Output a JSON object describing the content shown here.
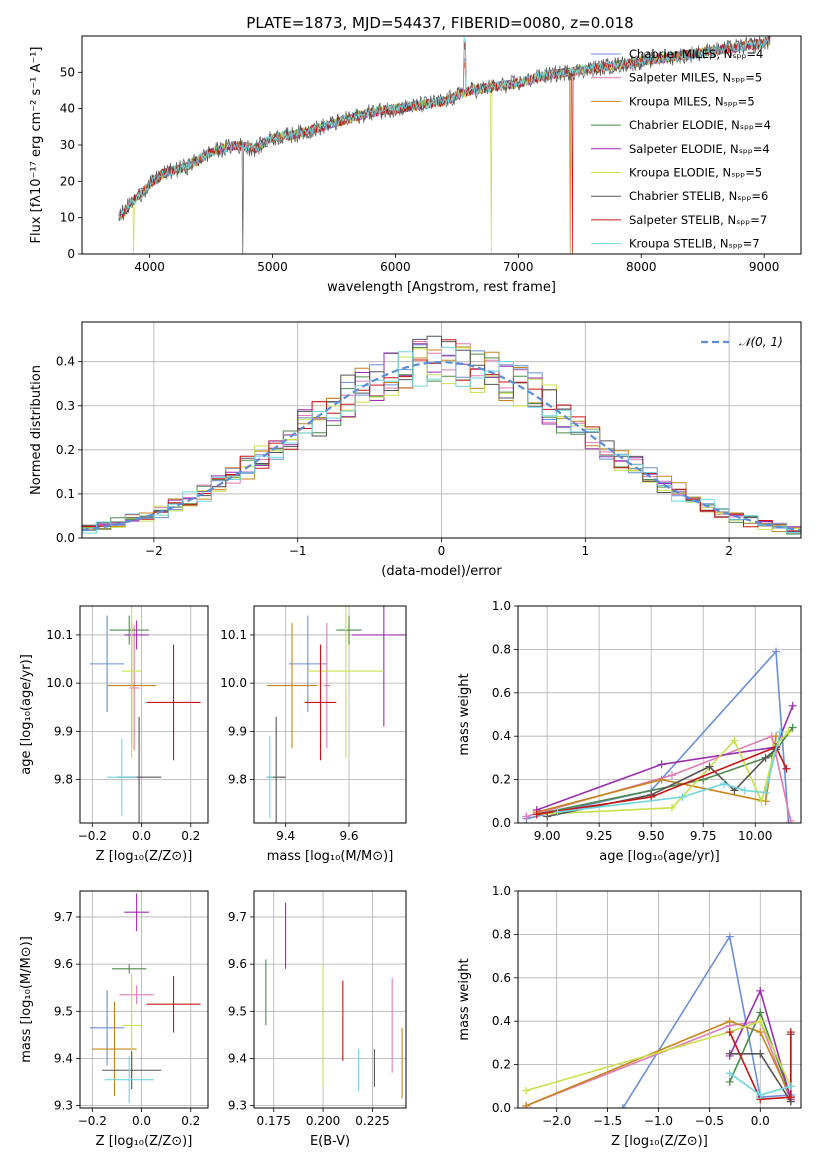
{
  "figure_title": "PLATE=1873, MJD=54437, FIBERID=0080, z=0.018",
  "colors": {
    "Chabrier MILES": "#6a8fd6",
    "Salpeter MILES": "#e07ab8",
    "Kroupa MILES": "#c8841a",
    "Chabrier ELODIE": "#4e8a4e",
    "Salpeter ELODIE": "#9a2fb0",
    "Kroupa ELODIE": "#c8e04a",
    "Chabrier STELIB": "#555555",
    "Salpeter STELIB": "#c81414",
    "Kroupa STELIB": "#6fd6e0"
  },
  "chart_data": [
    {
      "id": "spectrum",
      "type": "line",
      "xlabel": "wavelength [Angstrom, rest frame]",
      "ylabel": "Flux [fλ10⁻¹⁷ erg cm⁻² s⁻¹ A⁻¹]",
      "xlim": [
        3450,
        9300
      ],
      "ylim": [
        0,
        60
      ],
      "xticks": [
        4000,
        5000,
        6000,
        7000,
        8000,
        9000
      ],
      "yticks": [
        0,
        10,
        20,
        30,
        40,
        50
      ],
      "grid": false,
      "legend_position": "top-right",
      "legend": [
        "Chabrier MILES, Nₛₚₚ=4",
        "Salpeter MILES, Nₛₚₚ=5",
        "Kroupa MILES, Nₛₚₚ=5",
        "Chabrier ELODIE, Nₛₚₚ=4",
        "Salpeter ELODIE, Nₛₚₚ=4",
        "Kroupa ELODIE, Nₛₚₚ=5",
        "Chabrier STELIB, Nₛₚₚ=6",
        "Salpeter STELIB, Nₛₚₚ=7",
        "Kroupa STELIB, Nₛₚₚ=7"
      ],
      "continuum": {
        "x": [
          3750,
          3850,
          4000,
          4100,
          4300,
          4500,
          4700,
          4860,
          5000,
          5200,
          5400,
          5600,
          5800,
          6000,
          6200,
          6400,
          6600,
          6800,
          7000,
          7200,
          7400,
          7600,
          7800,
          8000,
          8200,
          8400,
          8600,
          8800,
          9000,
          9050
        ],
        "y": [
          10,
          14,
          19,
          22,
          24,
          28,
          30,
          29,
          32,
          33,
          35,
          37,
          39,
          40,
          41,
          42,
          45,
          46,
          47,
          49,
          50,
          51,
          52,
          53,
          54,
          55,
          56,
          57,
          58,
          59
        ]
      },
      "dropouts": [
        {
          "series": "Kroupa ELODIE",
          "x": 3870
        },
        {
          "series": "Chabrier STELIB",
          "x": 4760
        },
        {
          "series": "Kroupa ELODIE",
          "x": 6780
        },
        {
          "series": "Kroupa MILES",
          "x": 7420
        },
        {
          "series": "Salpeter STELIB",
          "x": 7440
        }
      ]
    },
    {
      "id": "residuals",
      "type": "line",
      "xlabel": "(data-model)/error",
      "ylabel": "Normed distribution",
      "xlim": [
        -2.5,
        2.5
      ],
      "ylim": [
        0,
        0.49
      ],
      "xticks": [
        -2,
        -1,
        0,
        1,
        2
      ],
      "yticks": [
        0.0,
        0.1,
        0.2,
        0.3,
        0.4
      ],
      "grid": true,
      "legend_position": "top-right",
      "legend": [
        "𝒩(0, 1)"
      ],
      "gaussian": {
        "mean": 0,
        "sigma": 1
      }
    },
    {
      "id": "age_vs_Z",
      "type": "scatter",
      "xlabel": "Z [log₁₀(Z/Z⊙)]",
      "ylabel": "age  [log₁₀(age/yr)]",
      "xlim": [
        -0.25,
        0.27
      ],
      "ylim": [
        9.71,
        10.16
      ],
      "xticks": [
        -0.2,
        0.0,
        0.2
      ],
      "yticks": [
        9.8,
        9.9,
        10.0,
        10.1
      ],
      "grid": true,
      "points": [
        {
          "series": "Chabrier MILES",
          "x": -0.14,
          "xerr": 0.07,
          "y": 10.04,
          "yerr": 0.1
        },
        {
          "series": "Salpeter MILES",
          "x": -0.03,
          "xerr": 0.02,
          "y": 9.99,
          "yerr": 0.13
        },
        {
          "series": "Kroupa MILES",
          "x": -0.04,
          "xerr": 0.1,
          "y": 9.995,
          "yerr": 0.13
        },
        {
          "series": "Chabrier ELODIE",
          "x": -0.05,
          "xerr": 0.08,
          "y": 10.11,
          "yerr": 0.03
        },
        {
          "series": "Salpeter ELODIE",
          "x": -0.02,
          "xerr": 0.05,
          "y": 10.1,
          "yerr": 0.03
        },
        {
          "series": "Kroupa ELODIE",
          "x": -0.04,
          "xerr": 0.04,
          "y": 10.025,
          "yerr": 0.18
        },
        {
          "series": "Chabrier STELIB",
          "x": -0.01,
          "xerr": 0.09,
          "y": 9.805,
          "yerr": 0.125
        },
        {
          "series": "Salpeter STELIB",
          "x": 0.13,
          "xerr": 0.11,
          "y": 9.96,
          "yerr": 0.12
        },
        {
          "series": "Kroupa STELIB",
          "x": -0.08,
          "xerr": 0.06,
          "y": 9.805,
          "yerr": 0.08
        }
      ]
    },
    {
      "id": "age_vs_mass",
      "type": "scatter",
      "xlabel": "mass [log₁₀(M/M⊙)]",
      "ylabel": "",
      "xlim": [
        9.3,
        9.78
      ],
      "ylim": [
        9.71,
        10.16
      ],
      "xticks": [
        9.4,
        9.6
      ],
      "yticks": [
        9.8,
        9.9,
        10.0,
        10.1
      ],
      "grid": true,
      "points": [
        {
          "series": "Chabrier MILES",
          "x": 9.47,
          "xerr": 0.06,
          "y": 10.04,
          "yerr": 0.1
        },
        {
          "series": "Salpeter MILES",
          "x": 9.53,
          "xerr": 0.01,
          "y": 9.995,
          "yerr": 0.13
        },
        {
          "series": "Kroupa MILES",
          "x": 9.42,
          "xerr": 0.08,
          "y": 9.995,
          "yerr": 0.13
        },
        {
          "series": "Chabrier ELODIE",
          "x": 9.6,
          "xerr": 0.04,
          "y": 10.11,
          "yerr": 0.03
        },
        {
          "series": "Salpeter ELODIE",
          "x": 9.71,
          "xerr": 0.1,
          "y": 10.1,
          "yerr": 0.19
        },
        {
          "series": "Kroupa ELODIE",
          "x": 9.59,
          "xerr": 0.12,
          "y": 10.025,
          "yerr": 0.18
        },
        {
          "series": "Chabrier STELIB",
          "x": 9.37,
          "xerr": 0.03,
          "y": 9.805,
          "yerr": 0.125
        },
        {
          "series": "Salpeter STELIB",
          "x": 9.51,
          "xerr": 0.05,
          "y": 9.96,
          "yerr": 0.12
        },
        {
          "series": "Kroupa STELIB",
          "x": 9.35,
          "xerr": 0.01,
          "y": 9.805,
          "yerr": 0.085
        }
      ]
    },
    {
      "id": "mass_weight_vs_age",
      "type": "line",
      "xlabel": "age  [log₁₀(age/yr)]",
      "ylabel": "mass weight",
      "xlim": [
        8.86,
        10.22
      ],
      "ylim": [
        0,
        1
      ],
      "xticks": [
        9.0,
        9.25,
        9.5,
        9.75,
        10.0
      ],
      "yticks": [
        0.0,
        0.2,
        0.4,
        0.6,
        0.8,
        1.0
      ],
      "grid": true,
      "series": [
        {
          "series": "Chabrier MILES",
          "x": [
            8.9,
            9.5,
            10.1,
            10.16
          ],
          "y": [
            0.02,
            0.15,
            0.79,
            0.0
          ]
        },
        {
          "series": "Salpeter MILES",
          "x": [
            8.9,
            9.6,
            10.08,
            10.17
          ],
          "y": [
            0.03,
            0.22,
            0.4,
            0.01
          ]
        },
        {
          "series": "Kroupa MILES",
          "x": [
            8.95,
            9.55,
            10.05,
            10.1
          ],
          "y": [
            0.05,
            0.2,
            0.1,
            0.4
          ]
        },
        {
          "series": "Chabrier ELODIE",
          "x": [
            8.95,
            9.75,
            10.08,
            10.18
          ],
          "y": [
            0.04,
            0.2,
            0.31,
            0.44
          ]
        },
        {
          "series": "Salpeter ELODIE",
          "x": [
            8.95,
            9.55,
            10.1,
            10.18
          ],
          "y": [
            0.06,
            0.27,
            0.35,
            0.54
          ]
        },
        {
          "series": "Kroupa ELODIE",
          "x": [
            8.95,
            9.6,
            9.9,
            10.03,
            10.1,
            10.16
          ],
          "y": [
            0.04,
            0.07,
            0.38,
            0.1,
            0.36,
            0.42
          ]
        },
        {
          "series": "Chabrier STELIB",
          "x": [
            9.0,
            9.5,
            9.78,
            9.9,
            10.05,
            10.1
          ],
          "y": [
            0.03,
            0.13,
            0.26,
            0.15,
            0.3,
            0.34
          ]
        },
        {
          "series": "Salpeter STELIB",
          "x": [
            8.95,
            9.5,
            10.1,
            10.15
          ],
          "y": [
            0.04,
            0.12,
            0.35,
            0.25
          ]
        },
        {
          "series": "Kroupa STELIB",
          "x": [
            9.05,
            9.65,
            9.85,
            9.95,
            10.05,
            10.12
          ],
          "y": [
            0.05,
            0.12,
            0.18,
            0.15,
            0.14,
            0.42
          ]
        }
      ]
    },
    {
      "id": "mass_vs_Z",
      "type": "scatter",
      "xlabel": "Z [log₁₀(Z/Z⊙)]",
      "ylabel": "mass [log₁₀(M/M⊙)]",
      "xlim": [
        -0.25,
        0.27
      ],
      "ylim": [
        9.295,
        9.755
      ],
      "xticks": [
        -0.2,
        0.0,
        0.2
      ],
      "yticks": [
        9.3,
        9.4,
        9.5,
        9.6,
        9.7
      ],
      "grid": true,
      "points": [
        {
          "series": "Chabrier MILES",
          "x": -0.14,
          "xerr": 0.07,
          "y": 9.465,
          "yerr": 0.08
        },
        {
          "series": "Salpeter MILES",
          "x": -0.02,
          "xerr": 0.07,
          "y": 9.535,
          "yerr": 0.02
        },
        {
          "series": "Kroupa MILES",
          "x": -0.11,
          "xerr": 0.09,
          "y": 9.42,
          "yerr": 0.1
        },
        {
          "series": "Chabrier ELODIE",
          "x": -0.05,
          "xerr": 0.07,
          "y": 9.59,
          "yerr": 0.01
        },
        {
          "series": "Salpeter ELODIE",
          "x": -0.02,
          "xerr": 0.05,
          "y": 9.71,
          "yerr": 0.04
        },
        {
          "series": "Kroupa ELODIE",
          "x": -0.04,
          "xerr": 0.04,
          "y": 9.47,
          "yerr": 0.11
        },
        {
          "series": "Chabrier STELIB",
          "x": -0.04,
          "xerr": 0.12,
          "y": 9.375,
          "yerr": 0.04
        },
        {
          "series": "Salpeter STELIB",
          "x": 0.13,
          "xerr": 0.11,
          "y": 9.515,
          "yerr": 0.06
        },
        {
          "series": "Kroupa STELIB",
          "x": -0.05,
          "xerr": 0.1,
          "y": 9.355,
          "yerr": 0.05
        }
      ]
    },
    {
      "id": "mass_vs_ebv",
      "type": "scatter",
      "xlabel": "E(B-V)",
      "ylabel": "",
      "xlim": [
        0.165,
        0.242
      ],
      "ylim": [
        9.295,
        9.755
      ],
      "xticks": [
        0.175,
        0.2,
        0.225
      ],
      "yticks": [
        9.3,
        9.4,
        9.5,
        9.6,
        9.7
      ],
      "grid": true,
      "points": [
        {
          "series": "Salpeter MILES",
          "x": 0.235,
          "y": 9.47,
          "yerr": 0.1
        },
        {
          "series": "Kroupa MILES",
          "x": 0.24,
          "y": 9.39,
          "yerr": 0.075
        },
        {
          "series": "Chabrier ELODIE",
          "x": 0.171,
          "y": 9.54,
          "yerr": 0.07
        },
        {
          "series": "Salpeter ELODIE",
          "x": 0.181,
          "y": 9.66,
          "yerr": 0.07
        },
        {
          "series": "Kroupa ELODIE",
          "x": 0.2,
          "y": 9.47,
          "yerr": 0.13
        },
        {
          "series": "Chabrier STELIB",
          "x": 0.226,
          "y": 9.38,
          "yerr": 0.04
        },
        {
          "series": "Salpeter STELIB",
          "x": 0.21,
          "y": 9.48,
          "yerr": 0.085
        },
        {
          "series": "Kroupa STELIB",
          "x": 0.218,
          "y": 9.375,
          "yerr": 0.045
        }
      ]
    },
    {
      "id": "mass_weight_vs_Z",
      "type": "line",
      "xlabel": "Z [log₁₀(Z/Z⊙)]",
      "ylabel": "mass weight",
      "xlim": [
        -2.38,
        0.4
      ],
      "ylim": [
        0,
        1
      ],
      "xticks": [
        -2.0,
        -1.5,
        -1.0,
        -0.5,
        0.0
      ],
      "yticks": [
        0.0,
        0.2,
        0.4,
        0.6,
        0.8,
        1.0
      ],
      "grid": true,
      "series": [
        {
          "series": "Chabrier MILES",
          "x": [
            -1.35,
            -0.3,
            0.0,
            0.3
          ],
          "y": [
            0.0,
            0.79,
            0.05,
            0.06
          ]
        },
        {
          "series": "Salpeter MILES",
          "x": [
            -2.3,
            -0.3,
            0.0,
            0.3
          ],
          "y": [
            0.01,
            0.38,
            0.4,
            0.03
          ]
        },
        {
          "series": "Kroupa MILES",
          "x": [
            -2.3,
            -0.3,
            0.0,
            0.3
          ],
          "y": [
            0.01,
            0.4,
            0.35,
            0.05
          ]
        },
        {
          "series": "Chabrier ELODIE",
          "x": [
            -0.3,
            0.0,
            0.3
          ],
          "y": [
            0.12,
            0.44,
            0.05
          ]
        },
        {
          "series": "Salpeter ELODIE",
          "x": [
            -0.3,
            0.0,
            0.3
          ],
          "y": [
            0.24,
            0.54,
            0.04
          ]
        },
        {
          "series": "Kroupa ELODIE",
          "x": [
            -2.3,
            -0.3,
            0.0,
            0.3
          ],
          "y": [
            0.08,
            0.35,
            0.4,
            0.1
          ]
        },
        {
          "series": "Chabrier STELIB",
          "x": [
            -0.3,
            0.0,
            0.3,
            0.3
          ],
          "y": [
            0.25,
            0.25,
            0.03,
            0.34
          ]
        },
        {
          "series": "Salpeter STELIB",
          "x": [
            -0.3,
            0.0,
            0.3,
            0.3
          ],
          "y": [
            0.35,
            0.04,
            0.05,
            0.35
          ]
        },
        {
          "series": "Kroupa STELIB",
          "x": [
            -0.3,
            0.0,
            0.3
          ],
          "y": [
            0.16,
            0.06,
            0.1
          ]
        }
      ]
    }
  ]
}
